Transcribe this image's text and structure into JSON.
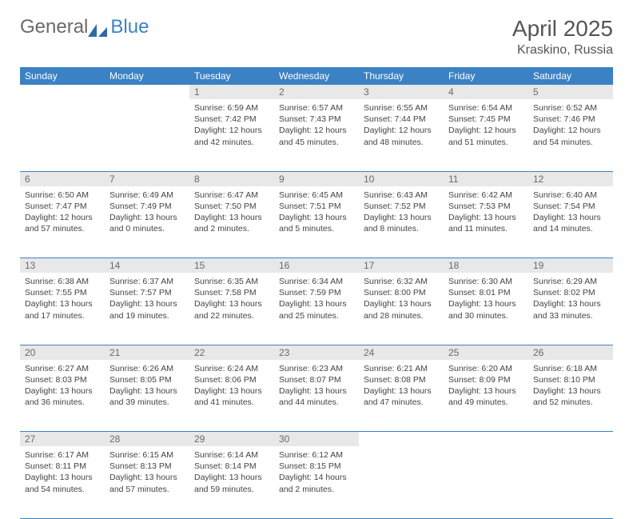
{
  "brand": {
    "part1": "General",
    "part2": "Blue"
  },
  "title": "April 2025",
  "location": "Kraskino, Russia",
  "colors": {
    "header_bg": "#3b82c4",
    "header_text": "#ffffff",
    "daynum_bg": "#e8e8e8",
    "daynum_text": "#6a6a6a",
    "body_text": "#444444",
    "border": "#3b82c4"
  },
  "weekdays": [
    "Sunday",
    "Monday",
    "Tuesday",
    "Wednesday",
    "Thursday",
    "Friday",
    "Saturday"
  ],
  "weeks": [
    [
      {
        "day": "",
        "sunrise": "",
        "sunset": "",
        "daylight": ""
      },
      {
        "day": "",
        "sunrise": "",
        "sunset": "",
        "daylight": ""
      },
      {
        "day": "1",
        "sunrise": "Sunrise: 6:59 AM",
        "sunset": "Sunset: 7:42 PM",
        "daylight": "Daylight: 12 hours and 42 minutes."
      },
      {
        "day": "2",
        "sunrise": "Sunrise: 6:57 AM",
        "sunset": "Sunset: 7:43 PM",
        "daylight": "Daylight: 12 hours and 45 minutes."
      },
      {
        "day": "3",
        "sunrise": "Sunrise: 6:55 AM",
        "sunset": "Sunset: 7:44 PM",
        "daylight": "Daylight: 12 hours and 48 minutes."
      },
      {
        "day": "4",
        "sunrise": "Sunrise: 6:54 AM",
        "sunset": "Sunset: 7:45 PM",
        "daylight": "Daylight: 12 hours and 51 minutes."
      },
      {
        "day": "5",
        "sunrise": "Sunrise: 6:52 AM",
        "sunset": "Sunset: 7:46 PM",
        "daylight": "Daylight: 12 hours and 54 minutes."
      }
    ],
    [
      {
        "day": "6",
        "sunrise": "Sunrise: 6:50 AM",
        "sunset": "Sunset: 7:47 PM",
        "daylight": "Daylight: 12 hours and 57 minutes."
      },
      {
        "day": "7",
        "sunrise": "Sunrise: 6:49 AM",
        "sunset": "Sunset: 7:49 PM",
        "daylight": "Daylight: 13 hours and 0 minutes."
      },
      {
        "day": "8",
        "sunrise": "Sunrise: 6:47 AM",
        "sunset": "Sunset: 7:50 PM",
        "daylight": "Daylight: 13 hours and 2 minutes."
      },
      {
        "day": "9",
        "sunrise": "Sunrise: 6:45 AM",
        "sunset": "Sunset: 7:51 PM",
        "daylight": "Daylight: 13 hours and 5 minutes."
      },
      {
        "day": "10",
        "sunrise": "Sunrise: 6:43 AM",
        "sunset": "Sunset: 7:52 PM",
        "daylight": "Daylight: 13 hours and 8 minutes."
      },
      {
        "day": "11",
        "sunrise": "Sunrise: 6:42 AM",
        "sunset": "Sunset: 7:53 PM",
        "daylight": "Daylight: 13 hours and 11 minutes."
      },
      {
        "day": "12",
        "sunrise": "Sunrise: 6:40 AM",
        "sunset": "Sunset: 7:54 PM",
        "daylight": "Daylight: 13 hours and 14 minutes."
      }
    ],
    [
      {
        "day": "13",
        "sunrise": "Sunrise: 6:38 AM",
        "sunset": "Sunset: 7:55 PM",
        "daylight": "Daylight: 13 hours and 17 minutes."
      },
      {
        "day": "14",
        "sunrise": "Sunrise: 6:37 AM",
        "sunset": "Sunset: 7:57 PM",
        "daylight": "Daylight: 13 hours and 19 minutes."
      },
      {
        "day": "15",
        "sunrise": "Sunrise: 6:35 AM",
        "sunset": "Sunset: 7:58 PM",
        "daylight": "Daylight: 13 hours and 22 minutes."
      },
      {
        "day": "16",
        "sunrise": "Sunrise: 6:34 AM",
        "sunset": "Sunset: 7:59 PM",
        "daylight": "Daylight: 13 hours and 25 minutes."
      },
      {
        "day": "17",
        "sunrise": "Sunrise: 6:32 AM",
        "sunset": "Sunset: 8:00 PM",
        "daylight": "Daylight: 13 hours and 28 minutes."
      },
      {
        "day": "18",
        "sunrise": "Sunrise: 6:30 AM",
        "sunset": "Sunset: 8:01 PM",
        "daylight": "Daylight: 13 hours and 30 minutes."
      },
      {
        "day": "19",
        "sunrise": "Sunrise: 6:29 AM",
        "sunset": "Sunset: 8:02 PM",
        "daylight": "Daylight: 13 hours and 33 minutes."
      }
    ],
    [
      {
        "day": "20",
        "sunrise": "Sunrise: 6:27 AM",
        "sunset": "Sunset: 8:03 PM",
        "daylight": "Daylight: 13 hours and 36 minutes."
      },
      {
        "day": "21",
        "sunrise": "Sunrise: 6:26 AM",
        "sunset": "Sunset: 8:05 PM",
        "daylight": "Daylight: 13 hours and 39 minutes."
      },
      {
        "day": "22",
        "sunrise": "Sunrise: 6:24 AM",
        "sunset": "Sunset: 8:06 PM",
        "daylight": "Daylight: 13 hours and 41 minutes."
      },
      {
        "day": "23",
        "sunrise": "Sunrise: 6:23 AM",
        "sunset": "Sunset: 8:07 PM",
        "daylight": "Daylight: 13 hours and 44 minutes."
      },
      {
        "day": "24",
        "sunrise": "Sunrise: 6:21 AM",
        "sunset": "Sunset: 8:08 PM",
        "daylight": "Daylight: 13 hours and 47 minutes."
      },
      {
        "day": "25",
        "sunrise": "Sunrise: 6:20 AM",
        "sunset": "Sunset: 8:09 PM",
        "daylight": "Daylight: 13 hours and 49 minutes."
      },
      {
        "day": "26",
        "sunrise": "Sunrise: 6:18 AM",
        "sunset": "Sunset: 8:10 PM",
        "daylight": "Daylight: 13 hours and 52 minutes."
      }
    ],
    [
      {
        "day": "27",
        "sunrise": "Sunrise: 6:17 AM",
        "sunset": "Sunset: 8:11 PM",
        "daylight": "Daylight: 13 hours and 54 minutes."
      },
      {
        "day": "28",
        "sunrise": "Sunrise: 6:15 AM",
        "sunset": "Sunset: 8:13 PM",
        "daylight": "Daylight: 13 hours and 57 minutes."
      },
      {
        "day": "29",
        "sunrise": "Sunrise: 6:14 AM",
        "sunset": "Sunset: 8:14 PM",
        "daylight": "Daylight: 13 hours and 59 minutes."
      },
      {
        "day": "30",
        "sunrise": "Sunrise: 6:12 AM",
        "sunset": "Sunset: 8:15 PM",
        "daylight": "Daylight: 14 hours and 2 minutes."
      },
      {
        "day": "",
        "sunrise": "",
        "sunset": "",
        "daylight": ""
      },
      {
        "day": "",
        "sunrise": "",
        "sunset": "",
        "daylight": ""
      },
      {
        "day": "",
        "sunrise": "",
        "sunset": "",
        "daylight": ""
      }
    ]
  ]
}
